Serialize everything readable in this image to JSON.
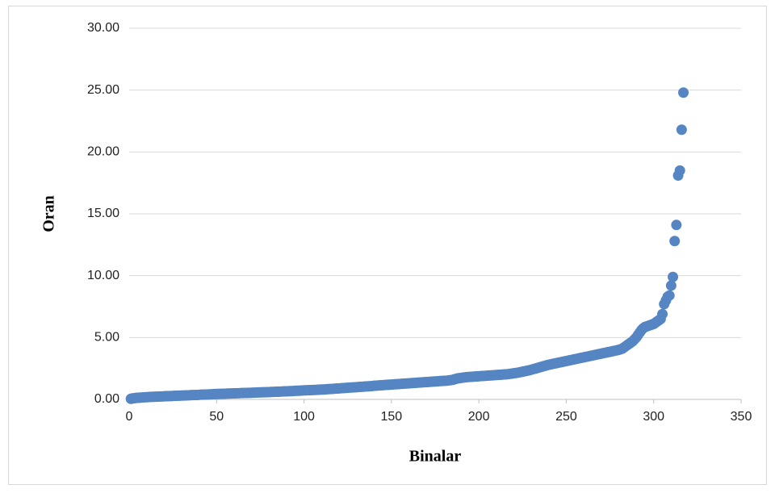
{
  "chart_data": {
    "type": "scatter",
    "x_label": "Binalar",
    "y_label": "Oran",
    "xlim": [
      0,
      350
    ],
    "xticks": [
      0,
      50,
      100,
      150,
      200,
      250,
      300,
      350
    ],
    "ylim": [
      0,
      30
    ],
    "yticks": [
      {
        "value": 0,
        "label": "0.00"
      },
      {
        "value": 5,
        "label": "5.00"
      },
      {
        "value": 10,
        "label": "10.00"
      },
      {
        "value": 15,
        "label": "15.00"
      },
      {
        "value": 20,
        "label": "20.00"
      },
      {
        "value": 25,
        "label": "25.00"
      },
      {
        "value": 30,
        "label": "30.00"
      }
    ],
    "grid": true,
    "color": "#5585c2",
    "x": [
      1,
      2,
      3,
      4,
      5,
      6,
      7,
      8,
      9,
      10,
      11,
      12,
      13,
      14,
      15,
      16,
      17,
      18,
      19,
      20,
      21,
      22,
      23,
      24,
      25,
      26,
      27,
      28,
      29,
      30,
      31,
      32,
      33,
      34,
      35,
      36,
      37,
      38,
      39,
      40,
      41,
      42,
      43,
      44,
      45,
      46,
      47,
      48,
      49,
      50,
      51,
      52,
      53,
      54,
      55,
      56,
      57,
      58,
      59,
      60,
      61,
      62,
      63,
      64,
      65,
      66,
      67,
      68,
      69,
      70,
      71,
      72,
      73,
      74,
      75,
      76,
      77,
      78,
      79,
      80,
      81,
      82,
      83,
      84,
      85,
      86,
      87,
      88,
      89,
      90,
      91,
      92,
      93,
      94,
      95,
      96,
      97,
      98,
      99,
      100,
      101,
      102,
      103,
      104,
      105,
      106,
      107,
      108,
      109,
      110,
      111,
      112,
      113,
      114,
      115,
      116,
      117,
      118,
      119,
      120,
      121,
      122,
      123,
      124,
      125,
      126,
      127,
      128,
      129,
      130,
      131,
      132,
      133,
      134,
      135,
      136,
      137,
      138,
      139,
      140,
      141,
      142,
      143,
      144,
      145,
      146,
      147,
      148,
      149,
      150,
      151,
      152,
      153,
      154,
      155,
      156,
      157,
      158,
      159,
      160,
      161,
      162,
      163,
      164,
      165,
      166,
      167,
      168,
      169,
      170,
      171,
      172,
      173,
      174,
      175,
      176,
      177,
      178,
      179,
      180,
      181,
      182,
      183,
      184,
      185,
      186,
      187,
      188,
      189,
      190,
      191,
      192,
      193,
      194,
      195,
      196,
      197,
      198,
      199,
      200,
      201,
      202,
      203,
      204,
      205,
      206,
      207,
      208,
      209,
      210,
      211,
      212,
      213,
      214,
      215,
      216,
      217,
      218,
      219,
      220,
      221,
      222,
      223,
      224,
      225,
      226,
      227,
      228,
      229,
      230,
      231,
      232,
      233,
      234,
      235,
      236,
      237,
      238,
      239,
      240,
      241,
      242,
      243,
      244,
      245,
      246,
      247,
      248,
      249,
      250,
      251,
      252,
      253,
      254,
      255,
      256,
      257,
      258,
      259,
      260,
      261,
      262,
      263,
      264,
      265,
      266,
      267,
      268,
      269,
      270,
      271,
      272,
      273,
      274,
      275,
      276,
      277,
      278,
      279,
      280,
      281,
      282,
      283,
      284,
      285,
      286,
      287,
      288,
      289,
      290,
      291,
      292,
      293,
      294,
      295,
      296,
      297,
      298,
      299,
      300,
      301,
      302,
      303,
      304,
      305,
      306,
      307,
      308,
      309,
      310,
      311,
      312,
      313,
      314,
      315,
      316,
      317
    ],
    "values": [
      0.05,
      0.08,
      0.1,
      0.12,
      0.13,
      0.14,
      0.15,
      0.16,
      0.17,
      0.18,
      0.19,
      0.2,
      0.2,
      0.21,
      0.22,
      0.22,
      0.23,
      0.24,
      0.24,
      0.25,
      0.26,
      0.26,
      0.27,
      0.27,
      0.28,
      0.29,
      0.29,
      0.3,
      0.3,
      0.31,
      0.32,
      0.32,
      0.33,
      0.33,
      0.34,
      0.35,
      0.35,
      0.36,
      0.36,
      0.37,
      0.38,
      0.38,
      0.39,
      0.39,
      0.4,
      0.41,
      0.41,
      0.42,
      0.43,
      0.44,
      0.44,
      0.45,
      0.45,
      0.46,
      0.46,
      0.47,
      0.47,
      0.48,
      0.48,
      0.49,
      0.49,
      0.5,
      0.5,
      0.51,
      0.51,
      0.52,
      0.52,
      0.53,
      0.53,
      0.54,
      0.55,
      0.55,
      0.56,
      0.56,
      0.57,
      0.57,
      0.58,
      0.58,
      0.59,
      0.59,
      0.6,
      0.6,
      0.61,
      0.62,
      0.62,
      0.63,
      0.63,
      0.64,
      0.65,
      0.65,
      0.66,
      0.67,
      0.67,
      0.68,
      0.69,
      0.7,
      0.7,
      0.71,
      0.72,
      0.73,
      0.73,
      0.74,
      0.75,
      0.75,
      0.76,
      0.77,
      0.77,
      0.78,
      0.79,
      0.8,
      0.8,
      0.81,
      0.82,
      0.83,
      0.84,
      0.85,
      0.86,
      0.87,
      0.88,
      0.89,
      0.9,
      0.91,
      0.92,
      0.93,
      0.94,
      0.95,
      0.96,
      0.97,
      0.98,
      0.99,
      1.0,
      1.01,
      1.02,
      1.03,
      1.04,
      1.05,
      1.06,
      1.07,
      1.08,
      1.1,
      1.11,
      1.12,
      1.13,
      1.14,
      1.15,
      1.16,
      1.17,
      1.18,
      1.19,
      1.2,
      1.21,
      1.22,
      1.23,
      1.24,
      1.25,
      1.26,
      1.27,
      1.28,
      1.29,
      1.3,
      1.31,
      1.32,
      1.33,
      1.34,
      1.35,
      1.36,
      1.37,
      1.38,
      1.39,
      1.4,
      1.41,
      1.42,
      1.43,
      1.44,
      1.45,
      1.46,
      1.47,
      1.48,
      1.49,
      1.5,
      1.51,
      1.52,
      1.54,
      1.56,
      1.58,
      1.62,
      1.66,
      1.7,
      1.72,
      1.74,
      1.76,
      1.78,
      1.8,
      1.81,
      1.82,
      1.83,
      1.84,
      1.85,
      1.86,
      1.87,
      1.88,
      1.89,
      1.9,
      1.91,
      1.92,
      1.93,
      1.94,
      1.95,
      1.96,
      1.97,
      1.98,
      1.99,
      2.0,
      2.01,
      2.02,
      2.03,
      2.05,
      2.07,
      2.09,
      2.11,
      2.13,
      2.15,
      2.18,
      2.21,
      2.24,
      2.27,
      2.3,
      2.33,
      2.36,
      2.4,
      2.44,
      2.48,
      2.52,
      2.56,
      2.6,
      2.64,
      2.68,
      2.72,
      2.76,
      2.8,
      2.83,
      2.86,
      2.89,
      2.92,
      2.95,
      2.98,
      3.01,
      3.04,
      3.07,
      3.1,
      3.13,
      3.16,
      3.19,
      3.22,
      3.25,
      3.28,
      3.31,
      3.34,
      3.37,
      3.4,
      3.43,
      3.46,
      3.49,
      3.52,
      3.55,
      3.58,
      3.61,
      3.64,
      3.67,
      3.7,
      3.73,
      3.76,
      3.79,
      3.82,
      3.85,
      3.88,
      3.91,
      3.94,
      3.97,
      4.0,
      4.05,
      4.1,
      4.2,
      4.3,
      4.4,
      4.5,
      4.6,
      4.7,
      4.85,
      5.0,
      5.2,
      5.4,
      5.6,
      5.75,
      5.85,
      5.9,
      5.95,
      6.0,
      6.05,
      6.1,
      6.2,
      6.3,
      6.4,
      6.5,
      6.9,
      7.7,
      8.0,
      8.3,
      8.4,
      9.2,
      9.9,
      12.8,
      14.1,
      18.1,
      18.5,
      21.8,
      24.8
    ]
  }
}
